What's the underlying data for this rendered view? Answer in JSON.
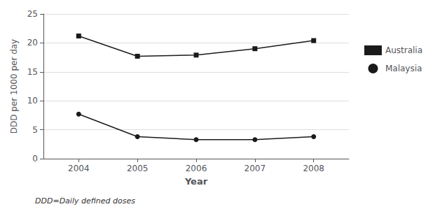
{
  "chart_data": {
    "type": "line",
    "x": [
      2004,
      2005,
      2006,
      2007,
      2008
    ],
    "series": [
      {
        "name": "Australia",
        "color": "#1a1a1a",
        "marker": "square",
        "values": [
          21.2,
          17.7,
          17.9,
          19.0,
          20.4
        ]
      },
      {
        "name": "Malaysia",
        "color": "#1a1a1a",
        "marker": "circle",
        "values": [
          7.7,
          3.8,
          3.3,
          3.3,
          3.8
        ]
      }
    ],
    "xlabel": "Year",
    "ylabel": "DDD per 1000 per day",
    "xlim": [
      2003.4,
      2008.6
    ],
    "xticks": [
      2004,
      2005,
      2006,
      2007,
      2008
    ],
    "ylim": [
      0,
      25
    ],
    "yticks": [
      0,
      5,
      10,
      15,
      20,
      25
    ],
    "grid": true,
    "legend": "right",
    "annotations": [
      "DDD=Daily defined doses"
    ]
  }
}
